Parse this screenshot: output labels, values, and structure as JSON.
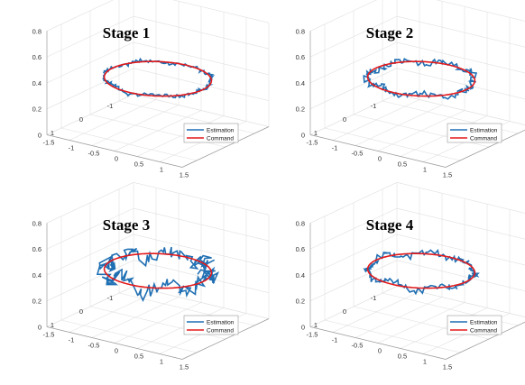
{
  "chart_data": [
    {
      "type": "line3d",
      "title": "Stage 1",
      "zlim": [
        0,
        0.8
      ],
      "z_ticks": [
        "0",
        "0.2",
        "0.4",
        "0.6",
        "0.8"
      ],
      "x_ticks": [
        "-1.5",
        "-1",
        "-0.5",
        "0",
        "0.5",
        "1",
        "1.5"
      ],
      "y_ticks": [
        "1",
        "0",
        "-1"
      ],
      "grid": true,
      "legend": {
        "position": "bottom-right",
        "entries": [
          "Estimation",
          "Command"
        ]
      },
      "colors": {
        "estimation": "#1f6fb3",
        "command": "#e31a1c"
      },
      "series": [
        {
          "name": "Command",
          "shape": "circle",
          "radius": 1,
          "z": 0.4
        },
        {
          "name": "Estimation",
          "shape": "circle",
          "radius": 1,
          "z": 0.4,
          "noise": 0.012
        }
      ]
    },
    {
      "type": "line3d",
      "title": "Stage 2",
      "zlim": [
        0,
        0.8
      ],
      "z_ticks": [
        "0",
        "0.2",
        "0.4",
        "0.6",
        "0.8"
      ],
      "x_ticks": [
        "-1.5",
        "-1",
        "-0.5",
        "0",
        "0.5",
        "1",
        "1.5"
      ],
      "y_ticks": [
        "1",
        "0",
        "-1"
      ],
      "grid": true,
      "legend": {
        "position": "bottom-right",
        "entries": [
          "Estimation",
          "Command"
        ]
      },
      "colors": {
        "estimation": "#1f6fb3",
        "command": "#e31a1c"
      },
      "series": [
        {
          "name": "Command",
          "shape": "circle",
          "radius": 1,
          "z": 0.4
        },
        {
          "name": "Estimation",
          "shape": "circle",
          "radius": 1,
          "z": 0.4,
          "noise": 0.02
        }
      ]
    },
    {
      "type": "line3d",
      "title": "Stage 3",
      "zlim": [
        0,
        0.8
      ],
      "z_ticks": [
        "0",
        "0.2",
        "0.4",
        "0.6",
        "0.8"
      ],
      "x_ticks": [
        "-1.5",
        "-1",
        "-0.5",
        "0",
        "0.5",
        "1",
        "1.5"
      ],
      "y_ticks": [
        "1",
        "0",
        "-1"
      ],
      "grid": true,
      "legend": {
        "position": "bottom-right",
        "entries": [
          "Estimation",
          "Command"
        ]
      },
      "colors": {
        "estimation": "#1f6fb3",
        "command": "#e31a1c"
      },
      "series": [
        {
          "name": "Command",
          "shape": "circle",
          "radius": 1,
          "z": 0.4
        },
        {
          "name": "Estimation",
          "shape": "circle",
          "radius": 1,
          "z": 0.4,
          "noise": 0.05
        }
      ]
    },
    {
      "type": "line3d",
      "title": "Stage 4",
      "zlim": [
        0,
        0.8
      ],
      "z_ticks": [
        "0",
        "0.2",
        "0.4",
        "0.6",
        "0.8"
      ],
      "x_ticks": [
        "-1.5",
        "-1",
        "-0.5",
        "0",
        "0.5",
        "1",
        "1.5"
      ],
      "y_ticks": [
        "1",
        "0",
        "-1"
      ],
      "grid": true,
      "legend": {
        "position": "bottom-right",
        "entries": [
          "Estimation",
          "Command"
        ]
      },
      "colors": {
        "estimation": "#1f6fb3",
        "command": "#e31a1c"
      },
      "series": [
        {
          "name": "Command",
          "shape": "circle",
          "radius": 1,
          "z": 0.4
        },
        {
          "name": "Estimation",
          "shape": "circle",
          "radius": 1,
          "z": 0.4,
          "noise": 0.02
        }
      ]
    }
  ]
}
